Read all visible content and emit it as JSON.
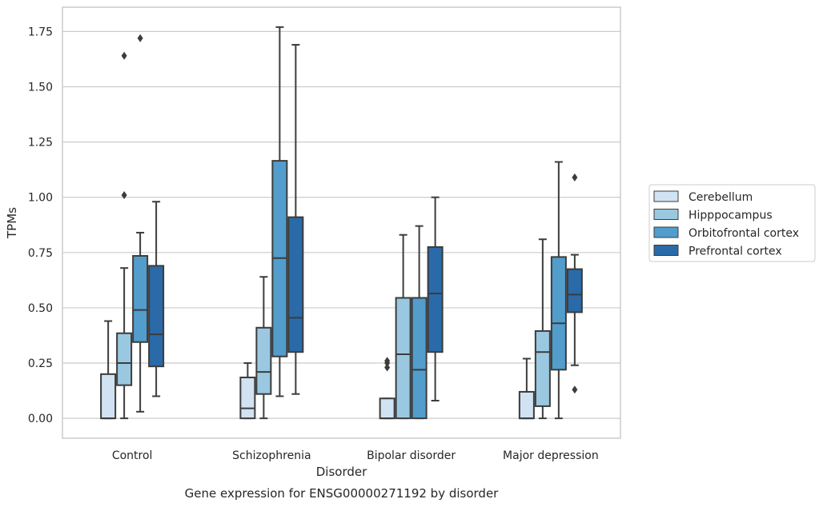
{
  "chart_data": {
    "type": "box",
    "title": "",
    "caption": "Gene expression for ENSG00000271192 by disorder",
    "xlabel": "Disorder",
    "ylabel": "TPMs",
    "ylim": [
      -0.09,
      1.86
    ],
    "yticks": [
      0.0,
      0.25,
      0.5,
      0.75,
      1.0,
      1.25,
      1.5,
      1.75
    ],
    "ytick_labels": [
      "0.00",
      "0.25",
      "0.50",
      "0.75",
      "1.00",
      "1.25",
      "1.50",
      "1.75"
    ],
    "grid": "horizontal",
    "legend_position": "right",
    "categories": [
      "Control",
      "Schizophrenia",
      "Bipolar disorder",
      "Major depression"
    ],
    "series": [
      {
        "name": "Cerebellum",
        "color": "#d1e2f2",
        "boxes": [
          {
            "q1": 0.0,
            "median": 0.0,
            "q3": 0.2,
            "whislo": 0.0,
            "whishi": 0.44,
            "fliers": []
          },
          {
            "q1": 0.0,
            "median": 0.045,
            "q3": 0.185,
            "whislo": 0.0,
            "whishi": 0.25,
            "fliers": []
          },
          {
            "q1": 0.0,
            "median": 0.0,
            "q3": 0.09,
            "whislo": 0.0,
            "whishi": 0.09,
            "fliers": [
              0.23,
              0.25,
              0.26
            ]
          },
          {
            "q1": 0.0,
            "median": 0.0,
            "q3": 0.12,
            "whislo": 0.0,
            "whishi": 0.27,
            "fliers": []
          }
        ]
      },
      {
        "name": "Hipppocampus",
        "color": "#9ac8e1",
        "boxes": [
          {
            "q1": 0.15,
            "median": 0.25,
            "q3": 0.385,
            "whislo": 0.0,
            "whishi": 0.68,
            "fliers": [
              1.01,
              1.64
            ]
          },
          {
            "q1": 0.11,
            "median": 0.21,
            "q3": 0.41,
            "whislo": 0.0,
            "whishi": 0.64,
            "fliers": []
          },
          {
            "q1": 0.0,
            "median": 0.29,
            "q3": 0.545,
            "whislo": 0.0,
            "whishi": 0.83,
            "fliers": []
          },
          {
            "q1": 0.055,
            "median": 0.3,
            "q3": 0.395,
            "whislo": 0.0,
            "whishi": 0.81,
            "fliers": []
          }
        ]
      },
      {
        "name": "Orbitofrontal cortex",
        "color": "#529dcc",
        "boxes": [
          {
            "q1": 0.345,
            "median": 0.49,
            "q3": 0.735,
            "whislo": 0.03,
            "whishi": 0.84,
            "fliers": [
              1.72
            ]
          },
          {
            "q1": 0.28,
            "median": 0.725,
            "q3": 1.165,
            "whislo": 0.1,
            "whishi": 1.77,
            "fliers": []
          },
          {
            "q1": 0.0,
            "median": 0.22,
            "q3": 0.545,
            "whislo": 0.0,
            "whishi": 0.87,
            "fliers": []
          },
          {
            "q1": 0.22,
            "median": 0.43,
            "q3": 0.73,
            "whislo": 0.0,
            "whishi": 1.16,
            "fliers": []
          }
        ]
      },
      {
        "name": "Prefrontal cortex",
        "color": "#2a6aa8",
        "boxes": [
          {
            "q1": 0.235,
            "median": 0.38,
            "q3": 0.69,
            "whislo": 0.1,
            "whishi": 0.98,
            "fliers": []
          },
          {
            "q1": 0.3,
            "median": 0.455,
            "q3": 0.91,
            "whislo": 0.11,
            "whishi": 1.69,
            "fliers": []
          },
          {
            "q1": 0.3,
            "median": 0.565,
            "q3": 0.775,
            "whislo": 0.08,
            "whishi": 1.0,
            "fliers": []
          },
          {
            "q1": 0.48,
            "median": 0.56,
            "q3": 0.675,
            "whislo": 0.24,
            "whishi": 0.74,
            "fliers": [
              0.13,
              1.09
            ]
          }
        ]
      }
    ]
  },
  "style": {
    "grid_color": "#cccccc",
    "spine_color": "#cccccc",
    "line_color": "#3c3c3c"
  }
}
